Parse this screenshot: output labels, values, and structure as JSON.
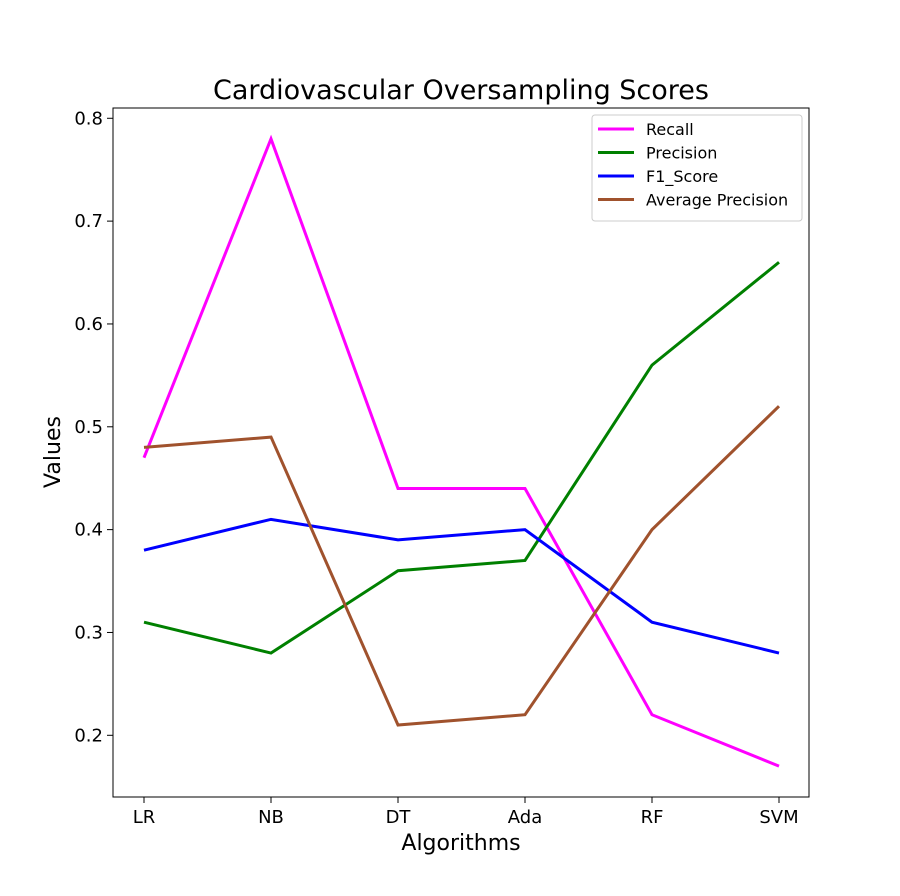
{
  "chart_data": {
    "type": "line",
    "title": "Cardiovascular Oversampling Scores",
    "xlabel": "Algorithms",
    "ylabel": "Values",
    "categories": [
      "LR",
      "NB",
      "DT",
      "Ada",
      "RF",
      "SVM"
    ],
    "ylim": [
      0.14,
      0.81
    ],
    "yticks": [
      0.2,
      0.3,
      0.4,
      0.5,
      0.6,
      0.7,
      0.8
    ],
    "ytick_labels": [
      "0.2",
      "0.3",
      "0.4",
      "0.5",
      "0.6",
      "0.7",
      "0.8"
    ],
    "grid": false,
    "legend_position": "top-right",
    "series": [
      {
        "name": "Recall",
        "color": "#ff00ff",
        "values": [
          0.47,
          0.78,
          0.44,
          0.44,
          0.22,
          0.17
        ]
      },
      {
        "name": "Precision",
        "color": "#008000",
        "values": [
          0.31,
          0.28,
          0.36,
          0.37,
          0.56,
          0.66
        ]
      },
      {
        "name": "F1_Score",
        "color": "#0000ff",
        "values": [
          0.38,
          0.41,
          0.39,
          0.4,
          0.31,
          0.28
        ]
      },
      {
        "name": "Average Precision",
        "color": "#a0522d",
        "values": [
          0.48,
          0.49,
          0.21,
          0.22,
          0.4,
          0.52
        ]
      }
    ]
  }
}
